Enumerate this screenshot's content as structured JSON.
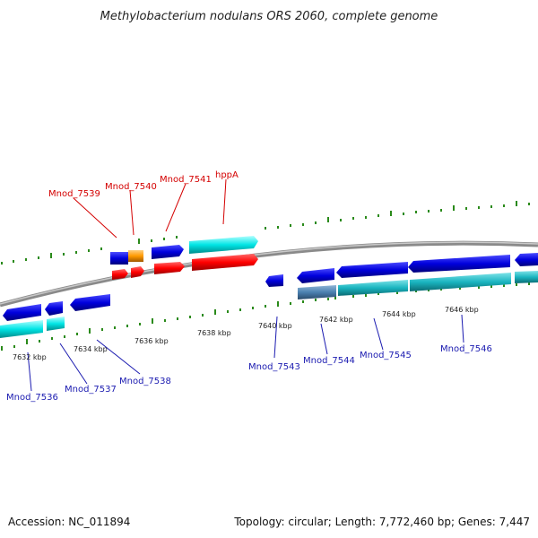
{
  "title": "Methylobacterium nodulans ORS 2060, complete genome",
  "accession": "Accession: NC_011894",
  "summary": "Topology: circular; Length: 7,772,460 bp; Genes: 7,447",
  "scale_labels": [
    "7632 kbp",
    "7634 kbp",
    "7636 kbp",
    "7638 kbp",
    "7640 kbp",
    "7642 kbp",
    "7644 kbp",
    "7646 kbp"
  ],
  "top_gene_labels": [
    "Mnod_7539",
    "Mnod_7540",
    "Mnod_7541",
    "hppA"
  ],
  "bottom_gene_labels": [
    "Mnod_7536",
    "Mnod_7537",
    "Mnod_7538",
    "Mnod_7543",
    "Mnod_7544",
    "Mnod_7545",
    "Mnod_7546"
  ],
  "colors": {
    "forward_cds": "#0000dd",
    "reverse_cds": "#2233cc",
    "rna": "#ff0000",
    "orange_gene": "#ff9a00",
    "cyan_feature": "#00e5e5",
    "teal_feature": "#1ab5c0",
    "slate_feature": "#4a80b0",
    "backbone": "#8a8a8a",
    "tick": "#2a8a1a",
    "top_label": "#d40000",
    "bottom_label": "#1a1ab0"
  }
}
